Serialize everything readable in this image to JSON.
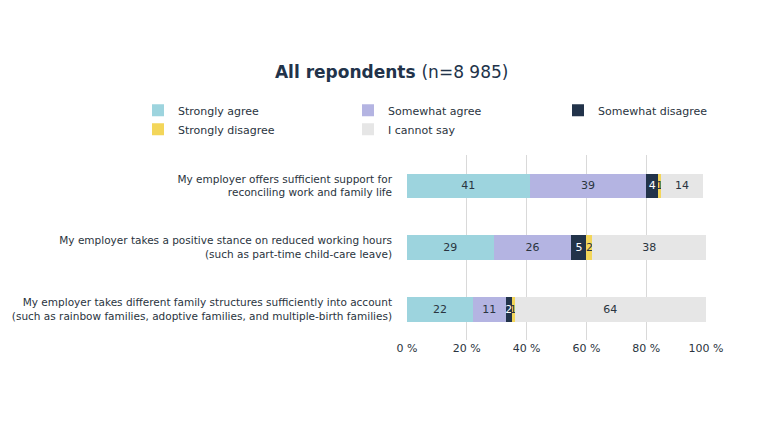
{
  "chart_data": {
    "type": "bar",
    "title": "All repondents (n=8 985)",
    "orientation": "horizontal",
    "stacked": true,
    "data_labels": true,
    "legend": "top",
    "grid": true,
    "categories": [
      "My employer offers sufficient support for\nreconciling work and family life",
      "My employer takes a positive stance on reduced working hours\n(such as part-time child-care leave)",
      "My employer takes different family structures sufficiently into account\n(such as rainbow families, adoptive families, and multiple-birth families)"
    ],
    "series": [
      {
        "name": "Strongly agree",
        "color": "#9dd4de",
        "values": [
          41,
          29,
          22
        ]
      },
      {
        "name": "Somewhat agree",
        "color": "#b4b4e2",
        "values": [
          39,
          26,
          11
        ]
      },
      {
        "name": "Somewhat disagree",
        "color": "#22334a",
        "values": [
          4,
          5,
          2
        ]
      },
      {
        "name": "Strongly disagree",
        "color": "#f3d65a",
        "values": [
          1,
          2,
          1
        ]
      },
      {
        "name": "I cannot say",
        "color": "#e6e6e6",
        "values": [
          14,
          38,
          64
        ]
      }
    ],
    "xlim": [
      0,
      100
    ],
    "xticks": [
      {
        "value": 0,
        "label": "0 %"
      },
      {
        "value": 20,
        "label": "20 %"
      },
      {
        "value": 40,
        "label": "40 %"
      },
      {
        "value": 60,
        "label": "60 %"
      },
      {
        "value": 80,
        "label": "80 %"
      },
      {
        "value": 100,
        "label": "100 %"
      }
    ]
  }
}
